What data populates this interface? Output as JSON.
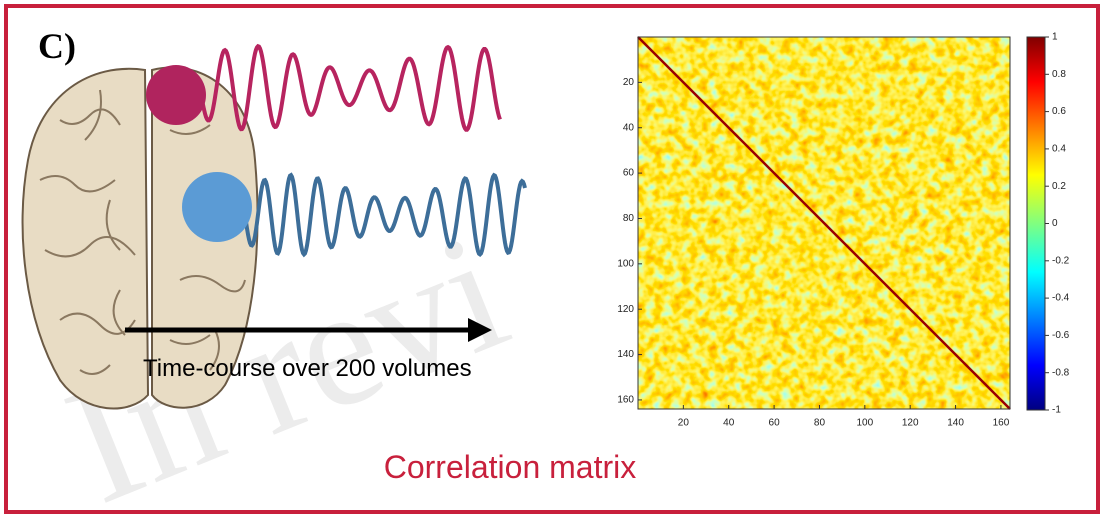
{
  "panel_label": "C)",
  "watermark": "In revi",
  "timecourse_label": "Time-course over 200 volumes",
  "matrix_title": "Correlation matrix",
  "matrix": {
    "lim": [
      0,
      164
    ],
    "xticks": [
      20,
      40,
      60,
      80,
      100,
      120,
      140,
      160
    ],
    "yticks": [
      20,
      40,
      60,
      80,
      100,
      120,
      140,
      160
    ],
    "colorbar": {
      "lim": [
        -1,
        1
      ],
      "ticks": [
        1,
        0.8,
        0.6,
        0.4,
        0.2,
        0,
        -0.2,
        -0.4,
        -0.6,
        -0.8,
        -1
      ]
    }
  }
}
